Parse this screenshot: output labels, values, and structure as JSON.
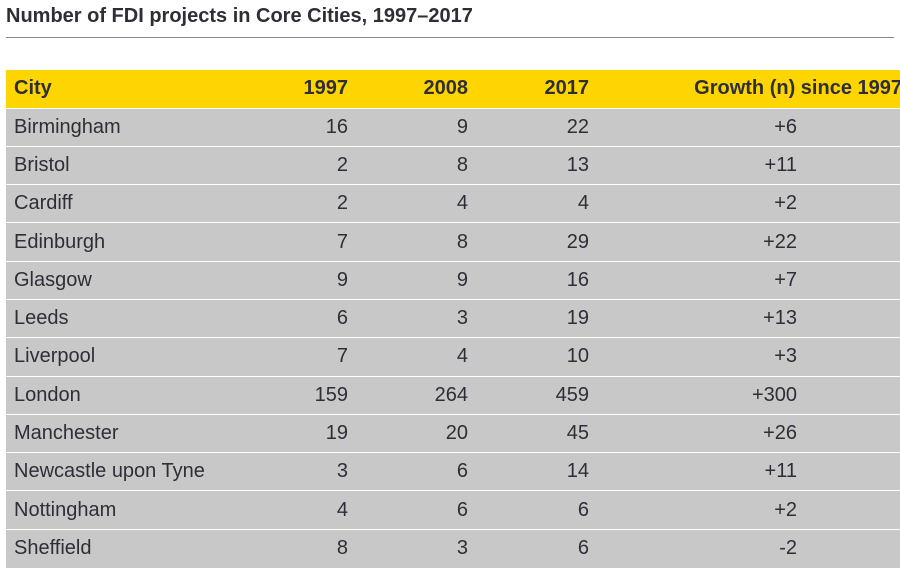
{
  "title": "Number of FDI projects in Core Cities, 1997–2017",
  "colors": {
    "header_bg": "#ffd500",
    "row_bg": "#c8c8c8",
    "text": "#2e2e38",
    "rule": "#8a8a8a"
  },
  "chart_data": {
    "type": "table",
    "title": "Number of FDI projects in Core Cities, 1997–2017",
    "columns": [
      "City",
      "1997",
      "2008",
      "2017",
      "Growth (n) since 1997"
    ],
    "rows": [
      {
        "city": "Birmingham",
        "y1997": "16",
        "y2008": "9",
        "y2017": "22",
        "growth": "+6"
      },
      {
        "city": "Bristol",
        "y1997": "2",
        "y2008": "8",
        "y2017": "13",
        "growth": "+11"
      },
      {
        "city": "Cardiff",
        "y1997": "2",
        "y2008": "4",
        "y2017": "4",
        "growth": "+2"
      },
      {
        "city": "Edinburgh",
        "y1997": "7",
        "y2008": "8",
        "y2017": "29",
        "growth": "+22"
      },
      {
        "city": "Glasgow",
        "y1997": "9",
        "y2008": "9",
        "y2017": "16",
        "growth": "+7"
      },
      {
        "city": "Leeds",
        "y1997": "6",
        "y2008": "3",
        "y2017": "19",
        "growth": "+13"
      },
      {
        "city": "Liverpool",
        "y1997": "7",
        "y2008": "4",
        "y2017": "10",
        "growth": "+3"
      },
      {
        "city": "London",
        "y1997": "159",
        "y2008": "264",
        "y2017": "459",
        "growth": "+300"
      },
      {
        "city": "Manchester",
        "y1997": "19",
        "y2008": "20",
        "y2017": "45",
        "growth": "+26"
      },
      {
        "city": "Newcastle upon Tyne",
        "y1997": "3",
        "y2008": "6",
        "y2017": "14",
        "growth": "+11"
      },
      {
        "city": "Nottingham",
        "y1997": "4",
        "y2008": "6",
        "y2017": "6",
        "growth": "+2"
      },
      {
        "city": "Sheffield",
        "y1997": "8",
        "y2008": "3",
        "y2017": "6",
        "growth": "-2"
      }
    ]
  }
}
